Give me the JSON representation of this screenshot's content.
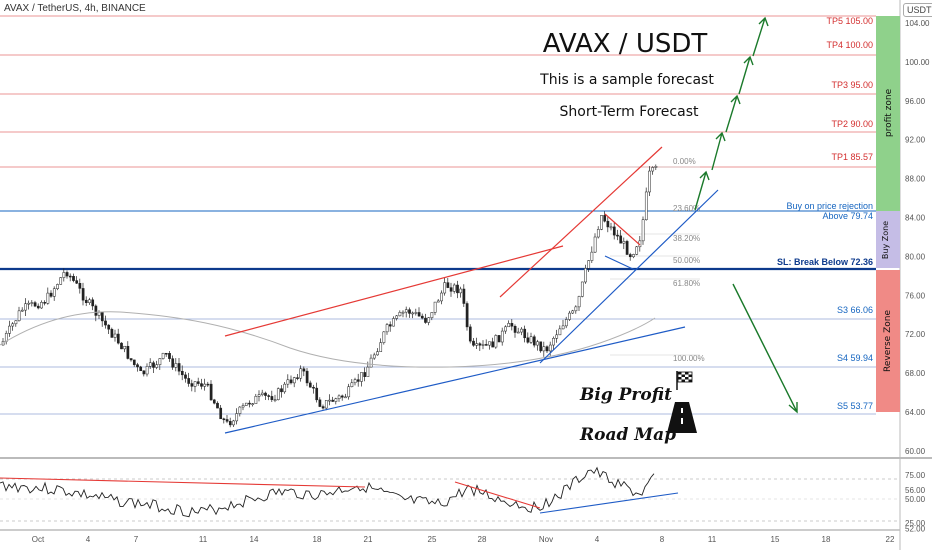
{
  "header": {
    "symbol_line": "AVAX / TetherUS, 4h, BINANCE",
    "currency_tag": "USDT"
  },
  "titles": {
    "main": "AVAX / USDT",
    "sub1": "This is a sample forecast",
    "sub2": "Short-Term Forecast",
    "big_profit": "Big Profit",
    "road_map": "Road Map"
  },
  "levels": {
    "tp5": "TP5 105.00",
    "tp4": "TP4 100.00",
    "tp3": "TP3 95.00",
    "tp2": "TP2 90.00",
    "tp1": "TP1 85.57",
    "buy_note": "Buy on price rejection",
    "buy_above": "Above 79.74",
    "sl": "SL: Break Below 72.36",
    "s3": "S3 66.06",
    "s4": "S4 59.94",
    "s5": "S5 53.77"
  },
  "fib": [
    "0.00%",
    "23.60%",
    "38.20%",
    "50.00%",
    "61.80%",
    "100.00%"
  ],
  "zones": {
    "profit": "profit zone",
    "buy": "Buy Zone",
    "reverse": "Reverse Zone"
  },
  "colors": {
    "tp_line": "#e57373",
    "blue_line": "#1565c0",
    "profit_zone": "#8fd18b",
    "buy_zone": "#c5bde6",
    "reverse_zone": "#f08a86",
    "green_arrow": "#1b7a2b"
  },
  "price_axis": [
    "104.00",
    "100.00",
    "96.00",
    "92.00",
    "88.00",
    "84.00",
    "80.00",
    "76.00",
    "72.00",
    "68.00",
    "64.00",
    "60.00",
    "56.00",
    "52.00"
  ],
  "rsi_axis": [
    "75.00",
    "50.00",
    "25.00"
  ],
  "time_axis": [
    "Oct",
    "4",
    "7",
    "11",
    "14",
    "18",
    "21",
    "25",
    "28",
    "Nov",
    "4",
    "8",
    "11",
    "15",
    "18",
    "22"
  ]
}
